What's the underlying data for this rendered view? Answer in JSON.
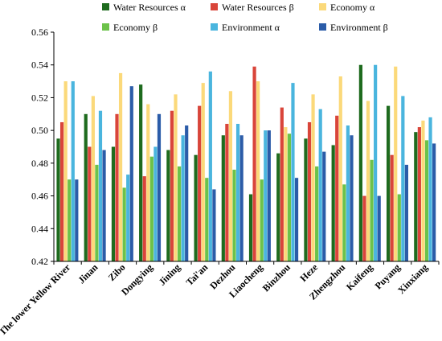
{
  "chart_data": {
    "type": "bar",
    "title": "",
    "xlabel": "",
    "ylabel": "",
    "ylim": [
      0.42,
      0.56
    ],
    "yticks": [
      "0.42",
      "0.44",
      "0.46",
      "0.48",
      "0.50",
      "0.52",
      "0.54",
      "0.56"
    ],
    "grid": false,
    "legend_position": "top",
    "categories": [
      "The lower Yellow River",
      "Jinan",
      "Zibo",
      "Dongying",
      "Jining",
      "Tai'an",
      "Dezhou",
      "Liaocheng",
      "Binzhou",
      "Heze",
      "Zhengzhou",
      "Kaifeng",
      "Puyang",
      "Xinxiang"
    ],
    "series": [
      {
        "name": "Water Resources α",
        "color": "#1e6b1e",
        "values": [
          0.495,
          0.51,
          0.49,
          0.528,
          0.488,
          0.485,
          0.497,
          0.461,
          0.486,
          0.495,
          0.491,
          0.54,
          0.515,
          0.499
        ]
      },
      {
        "name": "Water Resources β",
        "color": "#d9453a",
        "values": [
          0.505,
          0.49,
          0.51,
          0.472,
          0.512,
          0.515,
          0.504,
          0.539,
          0.514,
          0.505,
          0.509,
          0.46,
          0.485,
          0.502
        ]
      },
      {
        "name": "Economy α",
        "color": "#fbd97a",
        "values": [
          0.53,
          0.521,
          0.535,
          0.516,
          0.522,
          0.529,
          0.524,
          0.53,
          0.502,
          0.522,
          0.533,
          0.518,
          0.539,
          0.506
        ]
      },
      {
        "name": "Economy β",
        "color": "#6cc24a",
        "values": [
          0.47,
          0.479,
          0.465,
          0.484,
          0.478,
          0.471,
          0.476,
          0.47,
          0.498,
          0.478,
          0.467,
          0.482,
          0.461,
          0.494
        ]
      },
      {
        "name": "Environment α",
        "color": "#4ab5de",
        "values": [
          0.53,
          0.512,
          0.473,
          0.49,
          0.497,
          0.536,
          0.504,
          0.5,
          0.529,
          0.513,
          0.503,
          0.54,
          0.521,
          0.508
        ]
      },
      {
        "name": "Environment β",
        "color": "#2b5ca8",
        "values": [
          0.47,
          0.488,
          0.527,
          0.51,
          0.503,
          0.464,
          0.497,
          0.5,
          0.471,
          0.487,
          0.497,
          0.46,
          0.479,
          0.492
        ]
      }
    ]
  }
}
